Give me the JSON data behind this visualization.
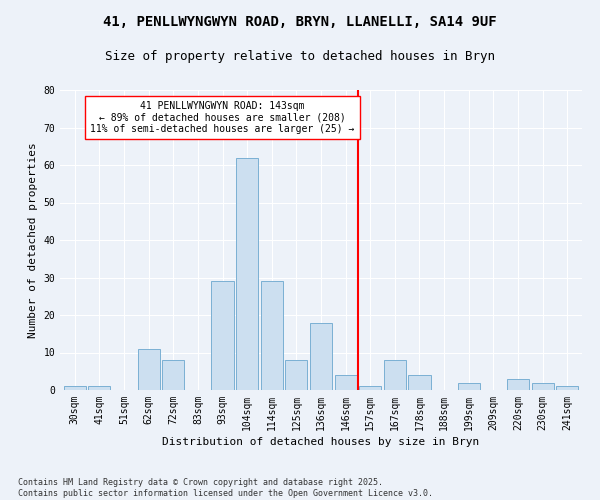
{
  "title1": "41, PENLLWYNGWYN ROAD, BRYN, LLANELLI, SA14 9UF",
  "title2": "Size of property relative to detached houses in Bryn",
  "xlabel": "Distribution of detached houses by size in Bryn",
  "ylabel": "Number of detached properties",
  "categories": [
    "30sqm",
    "41sqm",
    "51sqm",
    "62sqm",
    "72sqm",
    "83sqm",
    "93sqm",
    "104sqm",
    "114sqm",
    "125sqm",
    "136sqm",
    "146sqm",
    "157sqm",
    "167sqm",
    "178sqm",
    "188sqm",
    "199sqm",
    "209sqm",
    "220sqm",
    "230sqm",
    "241sqm"
  ],
  "values": [
    1,
    1,
    0,
    11,
    8,
    0,
    29,
    62,
    29,
    8,
    18,
    4,
    1,
    8,
    4,
    0,
    2,
    0,
    3,
    2,
    1
  ],
  "bar_color": "#ccdff0",
  "bar_edge_color": "#7ab0d4",
  "redline_x": 11.5,
  "ylim": [
    0,
    80
  ],
  "yticks": [
    0,
    10,
    20,
    30,
    40,
    50,
    60,
    70,
    80
  ],
  "annotation_title": "41 PENLLWYNGWYN ROAD: 143sqm",
  "annotation_line1": "← 89% of detached houses are smaller (208)",
  "annotation_line2": "11% of semi-detached houses are larger (25) →",
  "footnote1": "Contains HM Land Registry data © Crown copyright and database right 2025.",
  "footnote2": "Contains public sector information licensed under the Open Government Licence v3.0.",
  "bg_color": "#edf2f9",
  "grid_color": "#ffffff",
  "title1_fontsize": 10,
  "title2_fontsize": 9,
  "axis_label_fontsize": 8,
  "tick_fontsize": 7,
  "annot_fontsize": 7,
  "footnote_fontsize": 6
}
